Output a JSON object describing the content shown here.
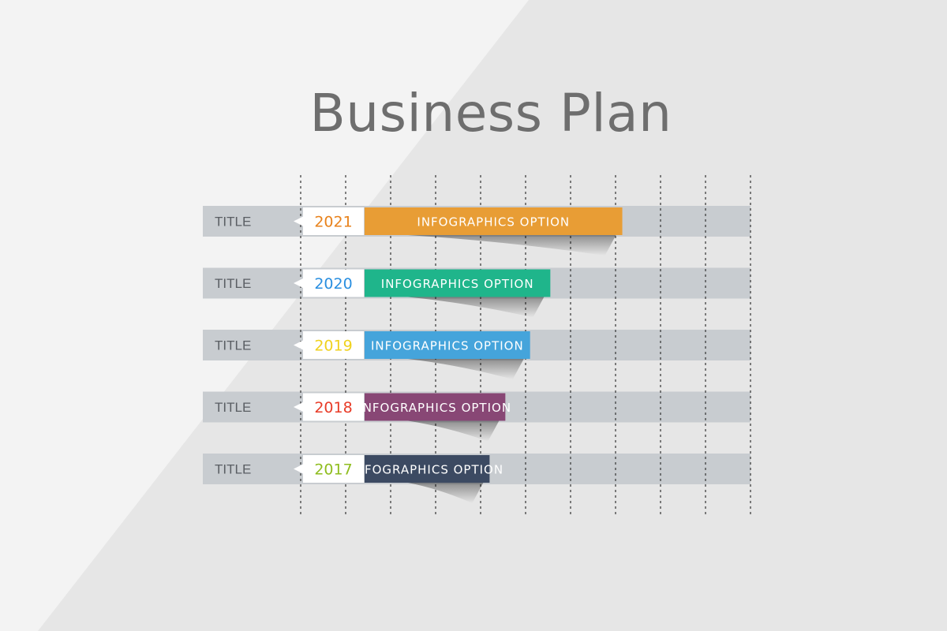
{
  "title": "Business Plan",
  "colors": {
    "background": "#e6e6e6",
    "background_light": "#f3f3f3",
    "track": "#c8ccd0",
    "year_box": "#ffffff",
    "grid_line": "#333333",
    "title_text": "#6e6e6e"
  },
  "chart_data": {
    "type": "bar",
    "orientation": "horizontal",
    "grid": "dashed vertical lines",
    "xlim": [
      0,
      10
    ],
    "categories": [
      "2021",
      "2020",
      "2019",
      "2018",
      "2017"
    ],
    "values": [
      7.15,
      5.55,
      5.1,
      4.55,
      4.2
    ],
    "rows": [
      {
        "title": "TITLE",
        "year": "2021",
        "label": "INFOGRAPHICS OPTION",
        "value": 7.15,
        "color": "#e89d35",
        "year_color": "#e8821c"
      },
      {
        "title": "TITLE",
        "year": "2020",
        "label": "INFOGRAPHICS OPTION",
        "value": 5.55,
        "color": "#1fb58b",
        "year_color": "#2a8fe0"
      },
      {
        "title": "TITLE",
        "year": "2019",
        "label": "INFOGRAPHICS OPTION",
        "value": 5.1,
        "color": "#45a4db",
        "year_color": "#f0d21e"
      },
      {
        "title": "TITLE",
        "year": "2018",
        "label": "INFOGRAPHICS OPTION",
        "value": 4.55,
        "color": "#884775",
        "year_color": "#e83c28"
      },
      {
        "title": "TITLE",
        "year": "2017",
        "label": "INFOGRAPHICS OPTION",
        "value": 4.2,
        "color": "#3c4a62",
        "year_color": "#8fbd1e"
      }
    ]
  }
}
